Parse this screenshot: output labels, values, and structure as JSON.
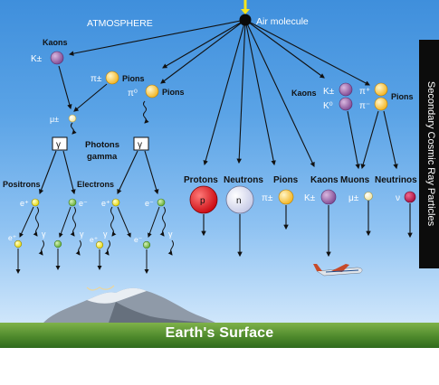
{
  "title": "ATMOSPHERE",
  "source_label": "Air molecule",
  "ground_label": "Earth's Surface",
  "side_panel_label": "Secondary Cosmic Ray Particles",
  "left_branch": {
    "kaons_label": "Kaons",
    "kaon_symbol": "K±",
    "pions_label": "Pions",
    "pion_charged_symbol": "π±",
    "pion_neutral_symbol": "π⁰",
    "muon_symbol": "μ±",
    "gamma_symbol": "γ",
    "photons_label": "Photons",
    "gamma_label": "gamma",
    "positrons_label": "Positrons",
    "electrons_label": "Electrons",
    "positron_symbol": "e⁺",
    "electron_symbol": "e⁻"
  },
  "right_branch": {
    "kaons_label": "Kaons",
    "kaon_charged_symbol": "K±",
    "kaon_neutral_symbol": "K⁰",
    "pion_plus_symbol": "π⁺",
    "pion_minus_symbol": "π⁻",
    "pions_label": "Pions"
  },
  "secondary_particles": [
    {
      "label": "Protons",
      "symbol": "p",
      "color": "#e8141b"
    },
    {
      "label": "Neutrons",
      "symbol": "n",
      "color": "#dfe1f2"
    },
    {
      "label": "Pions",
      "symbol": "π±",
      "color": "#ffd24a"
    },
    {
      "label": "Kaons",
      "symbol": "K±",
      "color": "#9a63a8"
    },
    {
      "label": "Muons",
      "symbol": "μ±",
      "color": "#fbf1b8"
    },
    {
      "label": "Neutrinos",
      "symbol": "ν",
      "color": "#c8174f"
    }
  ],
  "colors": {
    "pion": "#ffd24a",
    "kaon": "#9a63a8",
    "muon": "#fbf1b8",
    "positron": "#f4ea1a",
    "electron": "#7cc242",
    "neutrino": "#c8174f"
  }
}
